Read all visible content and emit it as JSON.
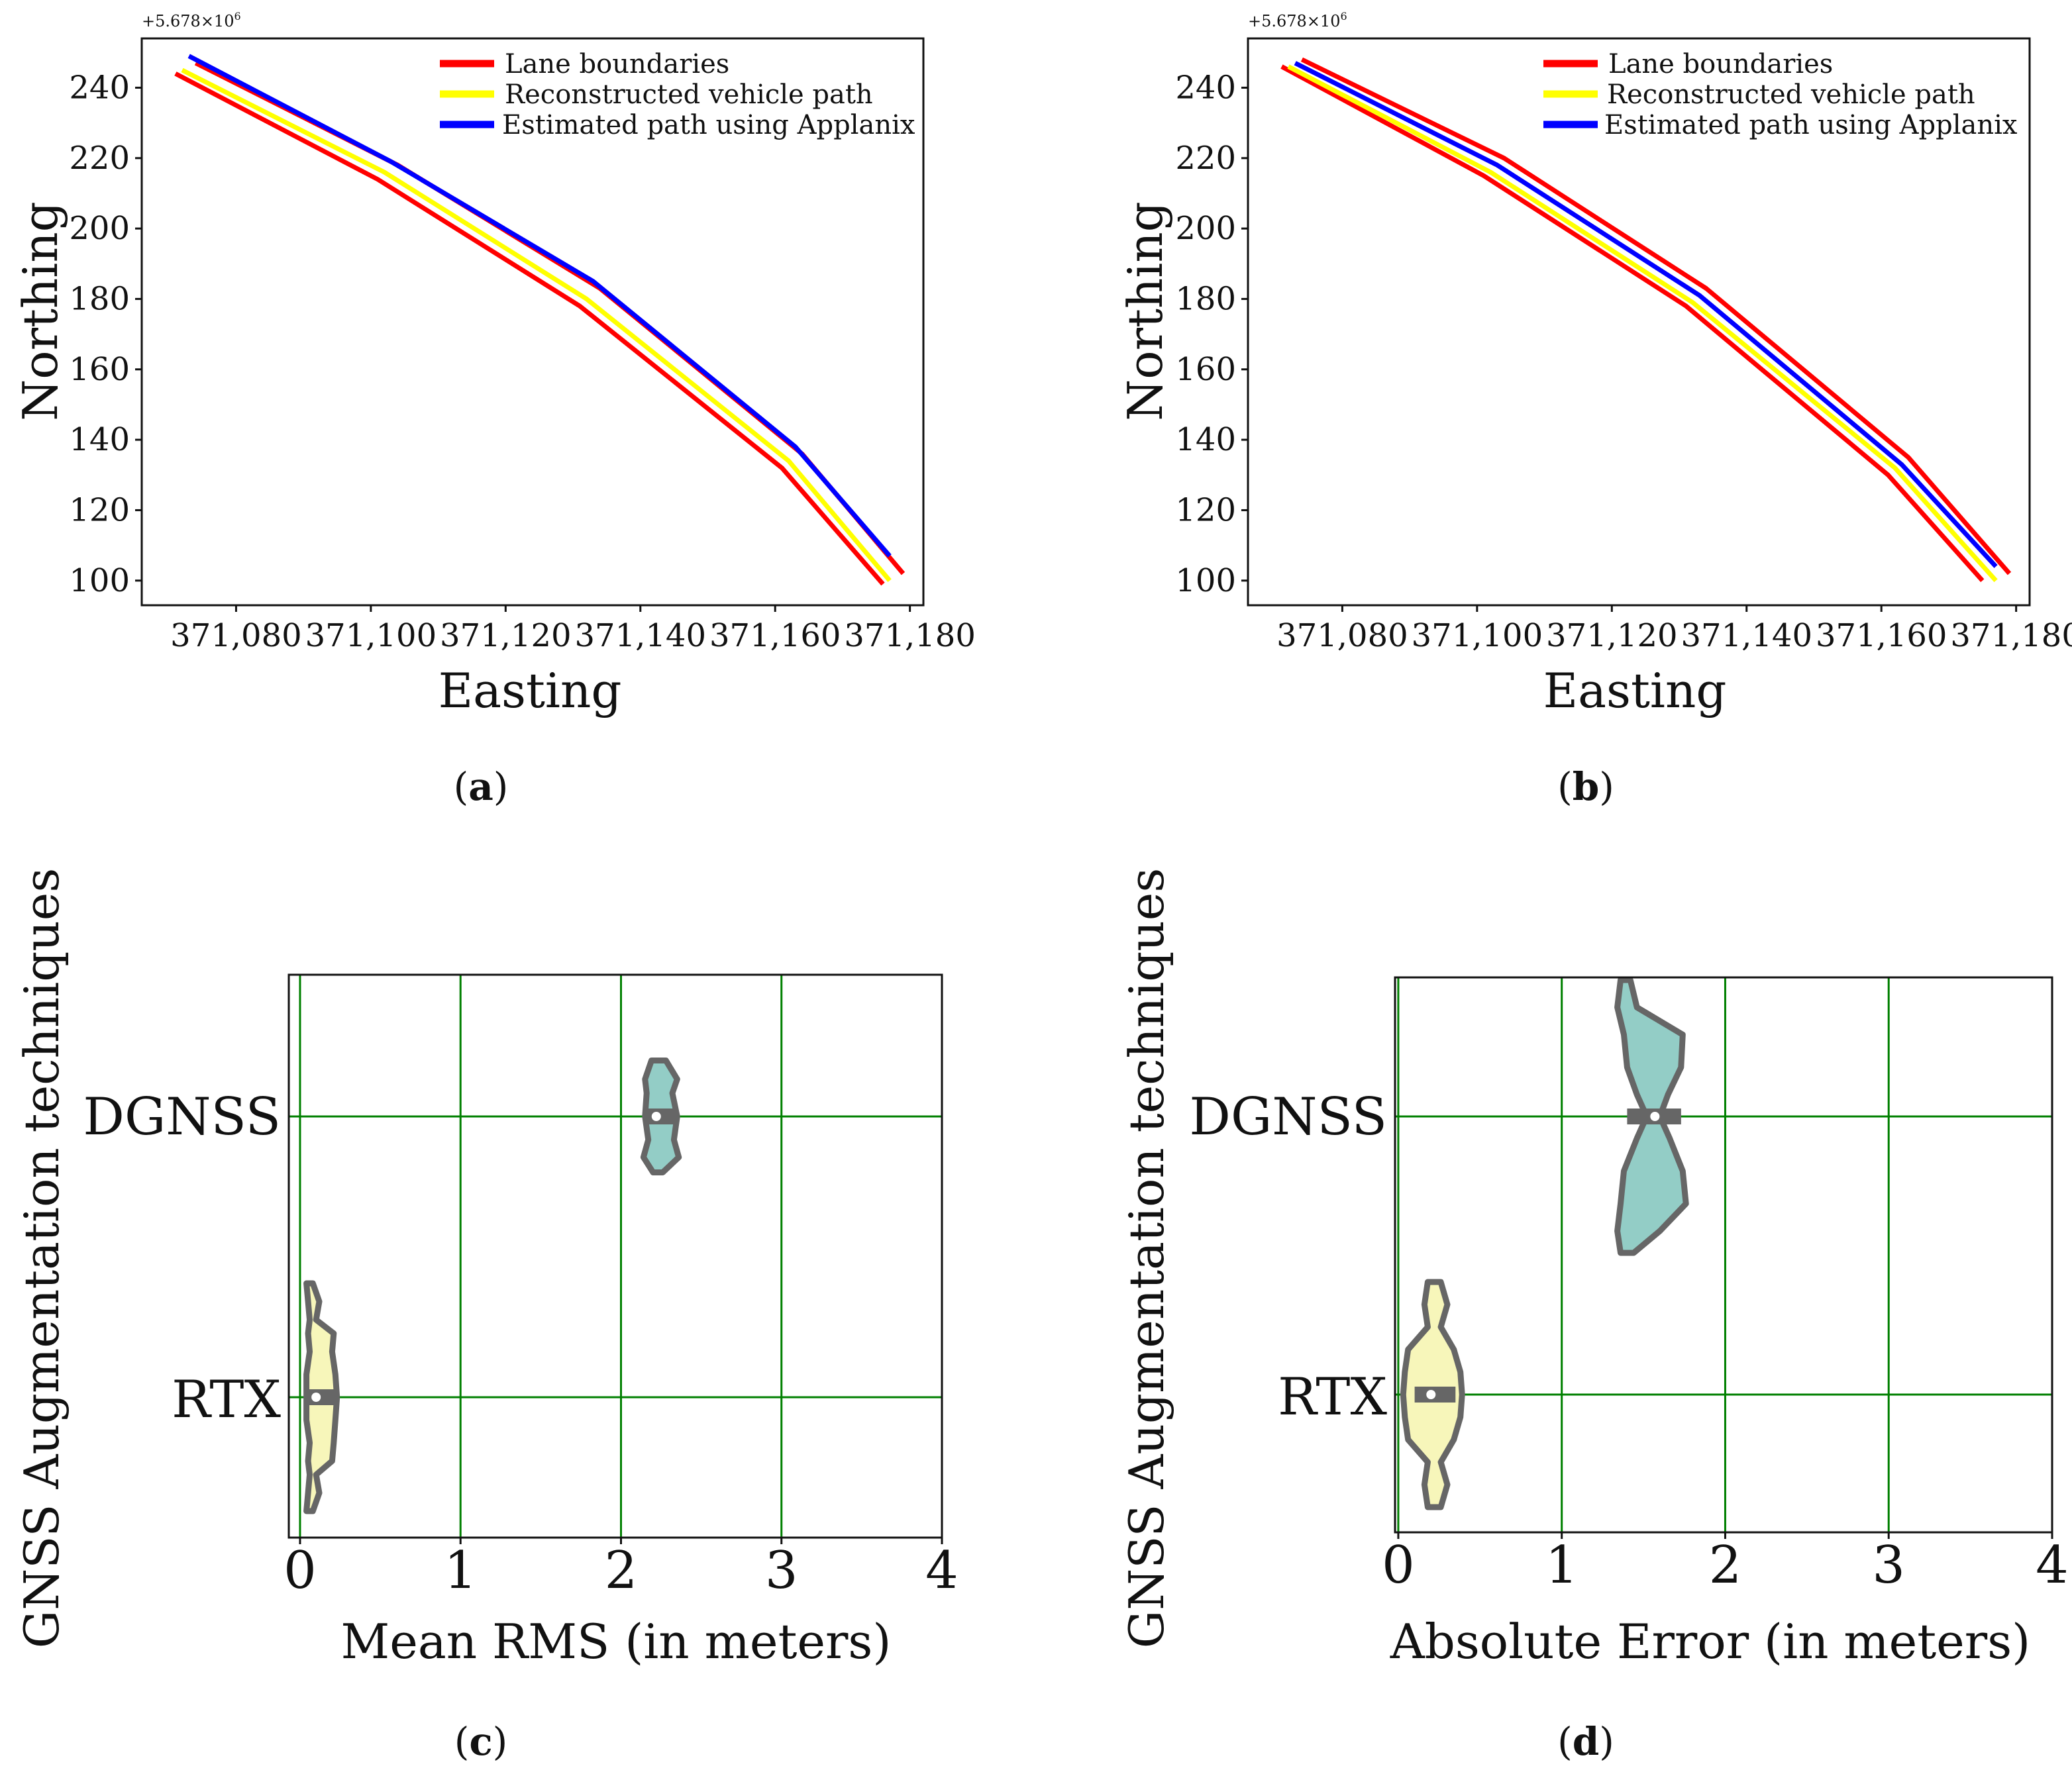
{
  "panel_labels": [
    "(a)",
    "(b)",
    "(c)",
    "(d)"
  ],
  "colors": {
    "lane": "#ff0000",
    "reconstructed": "#ffff00",
    "applanix": "#0000ff",
    "grid": "#008000",
    "dgnss_fill": "#93cdc6",
    "rtx_fill": "#f7f6ba",
    "violin_edge": "#666666"
  },
  "chart_data": [
    {
      "panel": "a",
      "type": "line",
      "xlabel": "Easting",
      "ylabel": "Northing",
      "y_offset_label": "+5.678×10",
      "y_offset_exp": "6",
      "xlim": [
        371066,
        371182
      ],
      "ylim": [
        93,
        254
      ],
      "xticks": [
        371080,
        371100,
        371120,
        371140,
        371160,
        371180
      ],
      "xtick_labels": [
        "371,080",
        "371,100",
        "371,120",
        "371,140",
        "371,160",
        "371,180"
      ],
      "yticks": [
        100,
        120,
        140,
        160,
        180,
        200,
        220,
        240
      ],
      "ytick_labels": [
        "100",
        "120",
        "140",
        "160",
        "180",
        "200",
        "220",
        "240"
      ],
      "legend": [
        "Lane boundaries",
        "Reconstructed vehicle path",
        "Estimated path using Applanix"
      ],
      "series": [
        {
          "name": "Lane boundaries",
          "role": "lane",
          "x": [
            371071,
            371101,
            371131,
            371161,
            371176
          ],
          "y": [
            244,
            214,
            178,
            132,
            99
          ]
        },
        {
          "name": "Lane boundaries",
          "role": "lane",
          "x": [
            371074,
            371104,
            371134,
            371164,
            371179
          ],
          "y": [
            247,
            218,
            183,
            136,
            102
          ]
        },
        {
          "name": "Reconstructed vehicle path",
          "role": "reconstructed",
          "x": [
            371072,
            371102,
            371132,
            371162,
            371177
          ],
          "y": [
            245,
            216,
            180,
            134,
            100
          ]
        },
        {
          "name": "Estimated path using Applanix",
          "role": "applanix",
          "x": [
            371073,
            371103,
            371133,
            371163,
            371177
          ],
          "y": [
            249,
            219,
            185,
            138,
            107
          ]
        }
      ]
    },
    {
      "panel": "b",
      "type": "line",
      "xlabel": "Easting",
      "ylabel": "Northing",
      "y_offset_label": "+5.678×10",
      "y_offset_exp": "6",
      "xlim": [
        371066,
        371182
      ],
      "ylim": [
        93,
        254
      ],
      "xticks": [
        371080,
        371100,
        371120,
        371140,
        371160,
        371180
      ],
      "xtick_labels": [
        "371,080",
        "371,100",
        "371,120",
        "371,140",
        "371,160",
        "371,180"
      ],
      "yticks": [
        100,
        120,
        140,
        160,
        180,
        200,
        220,
        240
      ],
      "ytick_labels": [
        "100",
        "120",
        "140",
        "160",
        "180",
        "200",
        "220",
        "240"
      ],
      "legend": [
        "Lane boundaries",
        "Reconstructed vehicle path",
        "Estimated path using Applanix"
      ],
      "series": [
        {
          "name": "Lane boundaries",
          "role": "lane",
          "x": [
            371071,
            371101,
            371131,
            371161,
            371175
          ],
          "y": [
            246,
            215,
            178,
            130,
            100
          ]
        },
        {
          "name": "Lane boundaries",
          "role": "lane",
          "x": [
            371074,
            371104,
            371134,
            371164,
            371179
          ],
          "y": [
            248,
            220,
            183,
            135,
            102
          ]
        },
        {
          "name": "Reconstructed vehicle path",
          "role": "reconstructed",
          "x": [
            371072,
            371102,
            371132,
            371162,
            371177
          ],
          "y": [
            246,
            216,
            179,
            132,
            100
          ]
        },
        {
          "name": "Estimated path using Applanix",
          "role": "applanix",
          "x": [
            371073,
            371103,
            371133,
            371163,
            371177
          ],
          "y": [
            247,
            218,
            181,
            133,
            104
          ]
        }
      ]
    },
    {
      "panel": "c",
      "type": "violin",
      "xlabel": "Mean RMS (in meters)",
      "ylabel": "GNSS Augmentation techniques",
      "xlim": [
        -0.07,
        4.0
      ],
      "xticks": [
        0,
        1,
        2,
        3,
        4
      ],
      "xtick_labels": [
        "0",
        "1",
        "2",
        "3",
        "4"
      ],
      "categories": [
        "DGNSS",
        "RTX"
      ],
      "violins": [
        {
          "category": "DGNSS",
          "fill": "dgnss",
          "median": 2.22,
          "q1": 2.15,
          "q3": 2.35,
          "profile": [
            [
              0.02,
              2.19,
              2.28
            ],
            [
              0.18,
              2.15,
              2.35
            ],
            [
              0.3,
              2.16,
              2.32
            ],
            [
              0.5,
              2.15,
              2.35
            ],
            [
              0.7,
              2.17,
              2.33
            ],
            [
              0.85,
              2.14,
              2.36
            ],
            [
              0.98,
              2.2,
              2.26
            ]
          ]
        },
        {
          "category": "RTX",
          "fill": "rtx",
          "median": 0.1,
          "q1": 0.05,
          "q3": 0.22,
          "profile": [
            [
              0.0,
              0.04,
              0.08
            ],
            [
              0.08,
              0.05,
              0.12
            ],
            [
              0.16,
              0.06,
              0.1
            ],
            [
              0.22,
              0.05,
              0.21
            ],
            [
              0.3,
              0.06,
              0.2
            ],
            [
              0.4,
              0.04,
              0.22
            ],
            [
              0.5,
              0.04,
              0.23
            ],
            [
              0.6,
              0.04,
              0.22
            ],
            [
              0.7,
              0.06,
              0.21
            ],
            [
              0.78,
              0.05,
              0.2
            ],
            [
              0.84,
              0.06,
              0.1
            ],
            [
              0.92,
              0.05,
              0.12
            ],
            [
              1.0,
              0.04,
              0.08
            ]
          ]
        }
      ]
    },
    {
      "panel": "d",
      "type": "violin",
      "xlabel": "Absolute Error (in meters)",
      "ylabel": "GNSS Augmentation techniques",
      "xlim": [
        -0.02,
        4.0
      ],
      "xticks": [
        0,
        1,
        2,
        3,
        4
      ],
      "xtick_labels": [
        "0",
        "1",
        "2",
        "3",
        "4"
      ],
      "categories": [
        "DGNSS",
        "RTX"
      ],
      "violins": [
        {
          "category": "DGNSS",
          "fill": "dgnss",
          "median": 1.57,
          "q1": 1.4,
          "q3": 1.73,
          "profile": [
            [
              0.0,
              1.36,
              1.42
            ],
            [
              0.1,
              1.34,
              1.46
            ],
            [
              0.2,
              1.38,
              1.74
            ],
            [
              0.32,
              1.4,
              1.73
            ],
            [
              0.42,
              1.46,
              1.65
            ],
            [
              0.5,
              1.52,
              1.6
            ],
            [
              0.58,
              1.46,
              1.66
            ],
            [
              0.7,
              1.38,
              1.74
            ],
            [
              0.82,
              1.36,
              1.76
            ],
            [
              0.92,
              1.34,
              1.6
            ],
            [
              1.0,
              1.36,
              1.44
            ]
          ]
        },
        {
          "category": "RTX",
          "fill": "rtx",
          "median": 0.2,
          "q1": 0.1,
          "q3": 0.35,
          "profile": [
            [
              0.0,
              0.18,
              0.26
            ],
            [
              0.1,
              0.16,
              0.3
            ],
            [
              0.2,
              0.18,
              0.26
            ],
            [
              0.3,
              0.06,
              0.34
            ],
            [
              0.4,
              0.04,
              0.38
            ],
            [
              0.5,
              0.03,
              0.39
            ],
            [
              0.6,
              0.04,
              0.38
            ],
            [
              0.7,
              0.06,
              0.34
            ],
            [
              0.8,
              0.18,
              0.26
            ],
            [
              0.9,
              0.16,
              0.3
            ],
            [
              1.0,
              0.18,
              0.26
            ]
          ]
        }
      ]
    }
  ]
}
